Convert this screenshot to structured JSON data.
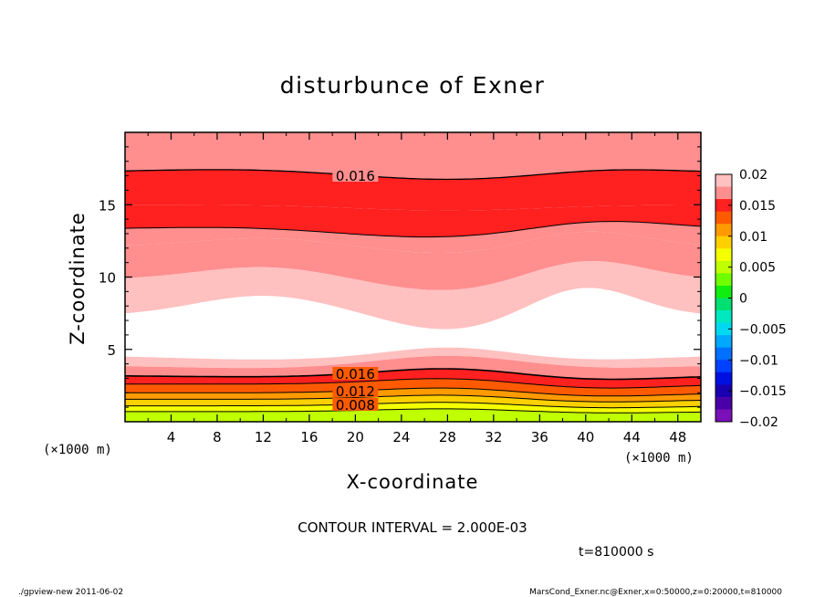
{
  "chart_data": {
    "type": "contour",
    "title": "disturbunce of Exner",
    "xlabel": "X-coordinate",
    "ylabel": "Z-coordinate",
    "x_unit": "(×1000 m)",
    "y_unit": "(×1000 m)",
    "xlim": [
      0,
      50
    ],
    "ylim": [
      0,
      20
    ],
    "x_ticks": [
      4,
      8,
      12,
      16,
      20,
      24,
      28,
      32,
      36,
      40,
      44,
      48
    ],
    "y_ticks": [
      5,
      10,
      15
    ],
    "contour_labels": [
      "0.016",
      "0.016",
      "0.012",
      "0.008"
    ],
    "contour_interval_text": "CONTOUR INTERVAL = 2.000E-03",
    "time_text": "t=810000 s",
    "colorbar": {
      "tick_labels": [
        "0.02",
        "0.015",
        "0.01",
        "0.005",
        "0",
        "−0.005",
        "−0.01",
        "−0.015",
        "−0.02"
      ],
      "values": [
        0.02,
        0.015,
        0.01,
        0.005,
        0,
        -0.005,
        -0.01,
        -0.015,
        -0.02
      ],
      "levels": [
        {
          "from": 0.018,
          "to": 0.02,
          "color": "#ffc0c0"
        },
        {
          "from": 0.016,
          "to": 0.018,
          "color": "#ff8e8e"
        },
        {
          "from": 0.014,
          "to": 0.016,
          "color": "#ff2020"
        },
        {
          "from": 0.012,
          "to": 0.014,
          "color": "#ff5a00"
        },
        {
          "from": 0.01,
          "to": 0.012,
          "color": "#ff9a00"
        },
        {
          "from": 0.008,
          "to": 0.01,
          "color": "#ffd000"
        },
        {
          "from": 0.006,
          "to": 0.008,
          "color": "#f4ff00"
        },
        {
          "from": 0.004,
          "to": 0.006,
          "color": "#bfff00"
        },
        {
          "from": 0.002,
          "to": 0.004,
          "color": "#70ff00"
        },
        {
          "from": 0.0,
          "to": 0.002,
          "color": "#10ee10"
        },
        {
          "from": -0.002,
          "to": 0.0,
          "color": "#00e070"
        },
        {
          "from": -0.004,
          "to": -0.002,
          "color": "#00e8c0"
        },
        {
          "from": -0.006,
          "to": -0.004,
          "color": "#00d8f0"
        },
        {
          "from": -0.008,
          "to": -0.006,
          "color": "#00a8ff"
        },
        {
          "from": -0.01,
          "to": -0.008,
          "color": "#0070ff"
        },
        {
          "from": -0.012,
          "to": -0.01,
          "color": "#0040ff"
        },
        {
          "from": -0.014,
          "to": -0.012,
          "color": "#0010e0"
        },
        {
          "from": -0.016,
          "to": -0.014,
          "color": "#1800b0"
        },
        {
          "from": -0.018,
          "to": -0.016,
          "color": "#4a00a8"
        },
        {
          "from": -0.02,
          "to": -0.018,
          "color": "#7a10b8"
        }
      ]
    }
  },
  "footer": {
    "left": "./gpview-new   2011-06-02",
    "right": "MarsCond_Exner.nc@Exner,x=0:50000,z=0:20000,t=810000"
  }
}
